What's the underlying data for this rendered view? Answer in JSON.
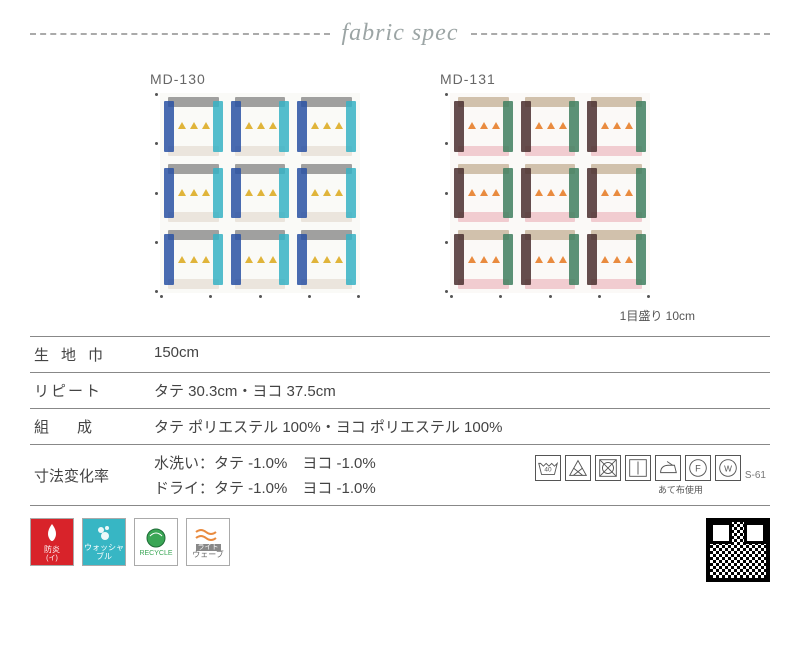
{
  "title": "fabric spec",
  "swatches": [
    {
      "code": "MD-130",
      "bg": "#fafaf7",
      "palette": {
        "a": "#2951a3",
        "b": "#8f8f8f",
        "c": "#e0b43a",
        "d": "#36b1c4",
        "e": "#e8e0d8"
      }
    },
    {
      "code": "MD-131",
      "bg": "#fbf9f7",
      "palette": {
        "a": "#4a2f2f",
        "b": "#c9b79f",
        "c": "#e98b3f",
        "d": "#3f7f5f",
        "e": "#eec4c9"
      }
    }
  ],
  "scale_note": "1目盛り 10cm",
  "specs": {
    "width_label": "生地巾",
    "width_value": "150cm",
    "repeat_label": "リピート",
    "repeat_value": "タテ 30.3cm・ヨコ 37.5cm",
    "comp_label": "組成",
    "comp_value": "タテ ポリエステル 100%・ヨコ ポリエステル 100%",
    "shrink_label": "寸法変化率",
    "shrink_wash": "水洗い：タテ -1.0%　ヨコ -1.0%",
    "shrink_dry": "ドライ：タテ -1.0%　ヨコ -1.0%"
  },
  "care": {
    "icons": [
      "40",
      "△",
      "⊗",
      "|",
      "⬚",
      "F",
      "W"
    ],
    "cloth_note": "あて布使用",
    "code": "S-61"
  },
  "badges": {
    "fire": "防炎",
    "fire_sub": "(イ)",
    "wash": "ウォッシャブル",
    "recycle": "RECYCLE",
    "wave": "ウェーブ",
    "light": "ライト"
  }
}
